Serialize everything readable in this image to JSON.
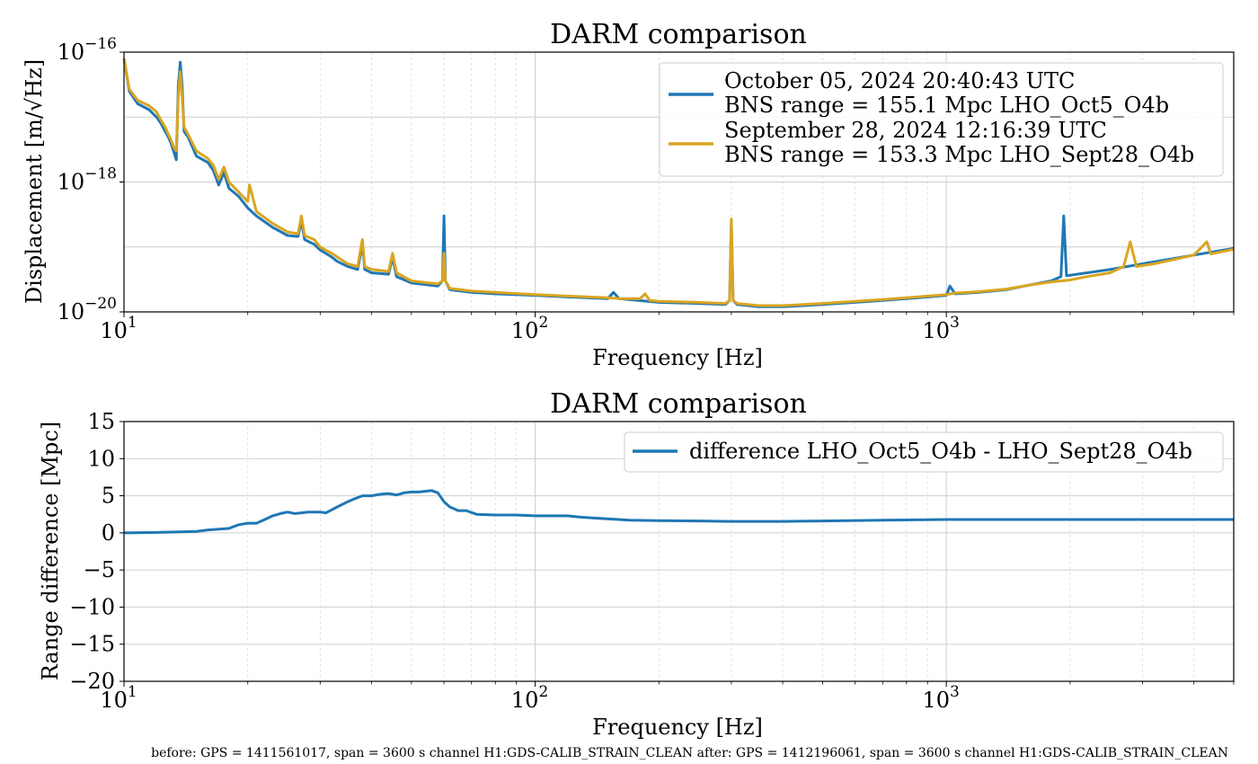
{
  "footer": "before: GPS = 1411561017, span = 3600 s channel H1:GDS-CALIB_STRAIN_CLEAN after: GPS = 1412196061, span = 3600 s channel H1:GDS-CALIB_STRAIN_CLEAN",
  "chart_data": [
    {
      "type": "line",
      "title": "DARM comparison",
      "xlabel": "Frequency [Hz]",
      "ylabel": "Displacement [m/√Hz]",
      "xscale": "log",
      "yscale": "log",
      "xlim": [
        10,
        5000
      ],
      "ylim": [
        1e-20,
        1e-16
      ],
      "xticks": [
        {
          "value": 10,
          "base": "10",
          "exp": "1"
        },
        {
          "value": 100,
          "base": "10",
          "exp": "2"
        },
        {
          "value": 1000,
          "base": "10",
          "exp": "3"
        }
      ],
      "yticks": [
        {
          "value": 1e-16,
          "base": "10",
          "exp": "−16"
        },
        {
          "value": 1e-18,
          "base": "10",
          "exp": "−18"
        },
        {
          "value": 1e-20,
          "base": "10",
          "exp": "−20"
        }
      ],
      "grid": true,
      "legend_position": "top-right",
      "series": [
        {
          "name": "October 05, 2024 20:40:43 UTC\nBNS range = 155.1 Mpc LHO_Oct5_O4b",
          "legend_lines": [
            "October 05, 2024 20:40:43 UTC",
            "BNS range = 155.1 Mpc LHO_Oct5_O4b"
          ],
          "color": "#1f77b4",
          "points": [
            [
              10,
              8e-17
            ],
            [
              10.3,
              2.5e-17
            ],
            [
              10.8,
              1.6e-17
            ],
            [
              11.5,
              1.3e-17
            ],
            [
              12,
              1e-17
            ],
            [
              12.3,
              8e-18
            ],
            [
              12.6,
              6e-18
            ],
            [
              12.8,
              5e-18
            ],
            [
              13.0,
              4e-18
            ],
            [
              13.2,
              3e-18
            ],
            [
              13.4,
              2.2e-18
            ],
            [
              13.55,
              3e-17
            ],
            [
              13.7,
              7e-17
            ],
            [
              13.85,
              3e-17
            ],
            [
              14.0,
              6e-18
            ],
            [
              14.3,
              5e-18
            ],
            [
              15.0,
              2.5e-18
            ],
            [
              16.0,
              2e-18
            ],
            [
              16.5,
              1.5e-18
            ],
            [
              17.0,
              9e-19
            ],
            [
              17.5,
              1.4e-18
            ],
            [
              18.0,
              8e-19
            ],
            [
              19.0,
              6e-19
            ],
            [
              20.0,
              4e-19
            ],
            [
              21,
              3e-19
            ],
            [
              23,
              2e-19
            ],
            [
              25,
              1.5e-19
            ],
            [
              26.5,
              1.45e-19
            ],
            [
              27,
              2.5e-19
            ],
            [
              27.5,
              1.3e-19
            ],
            [
              29,
              1.1e-19
            ],
            [
              30,
              9e-20
            ],
            [
              32,
              7e-20
            ],
            [
              33,
              6e-20
            ],
            [
              35,
              5e-20
            ],
            [
              37,
              4.5e-20
            ],
            [
              38,
              1.1e-19
            ],
            [
              38.5,
              4.5e-20
            ],
            [
              40,
              4e-20
            ],
            [
              44,
              3.8e-20
            ],
            [
              45,
              7e-20
            ],
            [
              46,
              3.5e-20
            ],
            [
              50,
              2.8e-20
            ],
            [
              55,
              2.6e-20
            ],
            [
              58,
              2.5e-20
            ],
            [
              59.5,
              3e-20
            ],
            [
              60,
              3e-19
            ],
            [
              60.5,
              3e-20
            ],
            [
              62,
              2.2e-20
            ],
            [
              70,
              2e-20
            ],
            [
              80,
              1.9e-20
            ],
            [
              100,
              1.8e-20
            ],
            [
              120,
              1.7e-20
            ],
            [
              150,
              1.6e-20
            ],
            [
              155,
              2e-20
            ],
            [
              160,
              1.6e-20
            ],
            [
              200,
              1.4e-20
            ],
            [
              250,
              1.35e-20
            ],
            [
              290,
              1.3e-20
            ],
            [
              297,
              1.5e-20
            ],
            [
              300,
              2.5e-19
            ],
            [
              303,
              1.5e-20
            ],
            [
              310,
              1.3e-20
            ],
            [
              350,
              1.2e-20
            ],
            [
              400,
              1.2e-20
            ],
            [
              450,
              1.25e-20
            ],
            [
              500,
              1.3e-20
            ],
            [
              600,
              1.4e-20
            ],
            [
              700,
              1.5e-20
            ],
            [
              800,
              1.6e-20
            ],
            [
              900,
              1.7e-20
            ],
            [
              1000,
              1.8e-20
            ],
            [
              1020,
              2.5e-20
            ],
            [
              1050,
              1.9e-20
            ],
            [
              1200,
              2e-20
            ],
            [
              1400,
              2.2e-20
            ],
            [
              1600,
              2.6e-20
            ],
            [
              1800,
              3e-20
            ],
            [
              1900,
              3.5e-20
            ],
            [
              1930,
              3e-19
            ],
            [
              1960,
              3.6e-20
            ],
            [
              2200,
              4e-20
            ],
            [
              2500,
              4.5e-20
            ],
            [
              3000,
              5.5e-20
            ],
            [
              3500,
              6.5e-20
            ],
            [
              4000,
              7.5e-20
            ],
            [
              4500,
              8.5e-20
            ],
            [
              5000,
              9.5e-20
            ]
          ]
        },
        {
          "name": "September 28, 2024 12:16:39 UTC\nBNS range = 153.3 Mpc LHO_Sept28_O4b",
          "legend_lines": [
            "September 28, 2024 12:16:39 UTC",
            "BNS range = 153.3 Mpc LHO_Sept28_O4b"
          ],
          "color": "#daa520",
          "points": [
            [
              10,
              8e-17
            ],
            [
              10.3,
              2.7e-17
            ],
            [
              10.8,
              1.8e-17
            ],
            [
              11.5,
              1.5e-17
            ],
            [
              12,
              1.2e-17
            ],
            [
              12.3,
              9e-18
            ],
            [
              12.6,
              7e-18
            ],
            [
              12.8,
              5.5e-18
            ],
            [
              13.0,
              4.5e-18
            ],
            [
              13.2,
              3.5e-18
            ],
            [
              13.4,
              3e-18
            ],
            [
              13.55,
              2e-17
            ],
            [
              13.7,
              5e-17
            ],
            [
              13.85,
              2e-17
            ],
            [
              14.0,
              7e-18
            ],
            [
              14.3,
              5.5e-18
            ],
            [
              15.0,
              3e-18
            ],
            [
              16.0,
              2.3e-18
            ],
            [
              16.5,
              1.8e-18
            ],
            [
              17.0,
              1.1e-18
            ],
            [
              17.5,
              1.7e-18
            ],
            [
              18.0,
              1e-18
            ],
            [
              19.0,
              7e-19
            ],
            [
              20.0,
              5e-19
            ],
            [
              20.2,
              9e-19
            ],
            [
              21,
              3.5e-19
            ],
            [
              23,
              2.3e-19
            ],
            [
              25,
              1.7e-19
            ],
            [
              26.5,
              1.6e-19
            ],
            [
              27,
              3e-19
            ],
            [
              27.5,
              1.5e-19
            ],
            [
              29,
              1.3e-19
            ],
            [
              30,
              1e-19
            ],
            [
              32,
              8e-20
            ],
            [
              33,
              7e-20
            ],
            [
              35,
              5.5e-20
            ],
            [
              37,
              5e-20
            ],
            [
              38,
              1.3e-19
            ],
            [
              38.5,
              5e-20
            ],
            [
              40,
              4.5e-20
            ],
            [
              44,
              4.2e-20
            ],
            [
              45,
              8e-20
            ],
            [
              46,
              4e-20
            ],
            [
              50,
              3e-20
            ],
            [
              55,
              2.8e-20
            ],
            [
              58,
              2.7e-20
            ],
            [
              59.5,
              3e-20
            ],
            [
              60,
              8e-20
            ],
            [
              60.5,
              3e-20
            ],
            [
              62,
              2.3e-20
            ],
            [
              70,
              2.1e-20
            ],
            [
              80,
              2e-20
            ],
            [
              100,
              1.85e-20
            ],
            [
              120,
              1.75e-20
            ],
            [
              150,
              1.65e-20
            ],
            [
              160,
              1.6e-20
            ],
            [
              180,
              1.6e-20
            ],
            [
              185,
              1.9e-20
            ],
            [
              190,
              1.5e-20
            ],
            [
              200,
              1.45e-20
            ],
            [
              250,
              1.4e-20
            ],
            [
              290,
              1.35e-20
            ],
            [
              297,
              1.5e-20
            ],
            [
              300,
              2.7e-19
            ],
            [
              303,
              1.5e-20
            ],
            [
              310,
              1.35e-20
            ],
            [
              350,
              1.25e-20
            ],
            [
              400,
              1.25e-20
            ],
            [
              450,
              1.3e-20
            ],
            [
              500,
              1.35e-20
            ],
            [
              600,
              1.45e-20
            ],
            [
              700,
              1.55e-20
            ],
            [
              800,
              1.65e-20
            ],
            [
              900,
              1.75e-20
            ],
            [
              1000,
              1.85e-20
            ],
            [
              1050,
              1.95e-20
            ],
            [
              1200,
              2.05e-20
            ],
            [
              1400,
              2.25e-20
            ],
            [
              1600,
              2.6e-20
            ],
            [
              1800,
              2.9e-20
            ],
            [
              2000,
              3.1e-20
            ],
            [
              2200,
              3.5e-20
            ],
            [
              2500,
              4e-20
            ],
            [
              2700,
              5e-20
            ],
            [
              2800,
              1.2e-19
            ],
            [
              2900,
              5e-20
            ],
            [
              3200,
              5.5e-20
            ],
            [
              3500,
              6.2e-20
            ],
            [
              4000,
              7.5e-20
            ],
            [
              4300,
              1.2e-19
            ],
            [
              4400,
              7.8e-20
            ],
            [
              4700,
              8.5e-20
            ],
            [
              5000,
              9.2e-20
            ]
          ]
        }
      ]
    },
    {
      "type": "line",
      "title": "DARM comparison",
      "xlabel": "Frequency [Hz]",
      "ylabel": "Range difference [Mpc]",
      "xscale": "log",
      "yscale": "linear",
      "xlim": [
        10,
        5000
      ],
      "ylim": [
        -20,
        15
      ],
      "xticks": [
        {
          "value": 10,
          "base": "10",
          "exp": "1"
        },
        {
          "value": 100,
          "base": "10",
          "exp": "2"
        },
        {
          "value": 1000,
          "base": "10",
          "exp": "3"
        }
      ],
      "yticks": [
        15,
        10,
        5,
        0,
        -5,
        -10,
        -15,
        -20
      ],
      "grid": true,
      "legend_position": "top-right",
      "series": [
        {
          "name": "difference LHO_Oct5_O4b - LHO_Sept28_O4b",
          "color": "#1f77b4",
          "points": [
            [
              10,
              0.0
            ],
            [
              12,
              0.05
            ],
            [
              14,
              0.15
            ],
            [
              15,
              0.2
            ],
            [
              16,
              0.4
            ],
            [
              17,
              0.5
            ],
            [
              18,
              0.6
            ],
            [
              19,
              1.1
            ],
            [
              20,
              1.3
            ],
            [
              21,
              1.3
            ],
            [
              22,
              1.8
            ],
            [
              23,
              2.3
            ],
            [
              24,
              2.6
            ],
            [
              25,
              2.8
            ],
            [
              26,
              2.6
            ],
            [
              27,
              2.7
            ],
            [
              28,
              2.8
            ],
            [
              30,
              2.8
            ],
            [
              31,
              2.7
            ],
            [
              33,
              3.5
            ],
            [
              35,
              4.2
            ],
            [
              36,
              4.5
            ],
            [
              38,
              5.0
            ],
            [
              40,
              5.0
            ],
            [
              42,
              5.2
            ],
            [
              44,
              5.3
            ],
            [
              46,
              5.1
            ],
            [
              48,
              5.4
            ],
            [
              50,
              5.5
            ],
            [
              52,
              5.5
            ],
            [
              54,
              5.6
            ],
            [
              56,
              5.7
            ],
            [
              58,
              5.4
            ],
            [
              60,
              4.2
            ],
            [
              62,
              3.5
            ],
            [
              65,
              3.0
            ],
            [
              68,
              3.0
            ],
            [
              72,
              2.5
            ],
            [
              80,
              2.4
            ],
            [
              90,
              2.4
            ],
            [
              100,
              2.3
            ],
            [
              110,
              2.3
            ],
            [
              120,
              2.3
            ],
            [
              130,
              2.1
            ],
            [
              150,
              1.9
            ],
            [
              170,
              1.7
            ],
            [
              200,
              1.65
            ],
            [
              250,
              1.6
            ],
            [
              300,
              1.55
            ],
            [
              400,
              1.55
            ],
            [
              500,
              1.6
            ],
            [
              700,
              1.7
            ],
            [
              1000,
              1.8
            ],
            [
              2000,
              1.8
            ],
            [
              5000,
              1.8
            ]
          ]
        }
      ]
    }
  ]
}
